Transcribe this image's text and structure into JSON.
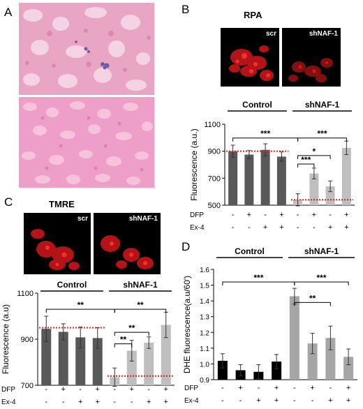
{
  "panel_letters": {
    "a": "A",
    "b": "B",
    "c": "C",
    "d": "D"
  },
  "panel_b": {
    "title": "RPA",
    "image_labels": [
      "scr",
      "shNAF-1"
    ]
  },
  "panel_c": {
    "title": "TMRE",
    "image_labels": [
      "scr",
      "shNAF-1"
    ]
  },
  "treatment_marks": {
    "minus": "-",
    "plus": "+"
  },
  "chart_data": [
    {
      "id": "B",
      "type": "bar",
      "ylabel": "Fluorescence (a.u.)",
      "ylim": [
        500,
        1100
      ],
      "yticks": [
        500,
        700,
        900,
        1100
      ],
      "groups": [
        "Control",
        "shNAF-1"
      ],
      "row_labels": [
        "DFP",
        "Ex-4"
      ],
      "dfp": [
        "-",
        "+",
        "-",
        "+",
        "-",
        "+",
        "-",
        "+"
      ],
      "ex4": [
        "-",
        "-",
        "+",
        "+",
        "-",
        "-",
        "+",
        "+"
      ],
      "values": [
        900,
        875,
        910,
        860,
        540,
        735,
        640,
        925
      ],
      "errors": [
        45,
        30,
        45,
        35,
        45,
        40,
        40,
        50
      ],
      "colors": [
        "#595959",
        "#595959",
        "#595959",
        "#595959",
        "#bfbfbf",
        "#bfbfbf",
        "#bfbfbf",
        "#bfbfbf"
      ],
      "ref_lines": [
        {
          "value": 900,
          "from": 0,
          "to": 3
        },
        {
          "value": 540,
          "from": 4,
          "to": 7
        }
      ],
      "sig": [
        {
          "from": 0,
          "to": 4,
          "label": "***",
          "y": 998
        },
        {
          "from": 4,
          "to": 7,
          "label": "***",
          "y": 998
        },
        {
          "from": 4,
          "to": 6,
          "label": "*",
          "y": 868
        },
        {
          "from": 4,
          "to": 5,
          "label": "***",
          "y": 805
        }
      ]
    },
    {
      "id": "C",
      "type": "bar",
      "ylabel": "Fluorescence (a.u)",
      "ylim": [
        700,
        1100
      ],
      "yticks": [
        700,
        900,
        1100
      ],
      "groups": [
        "Control",
        "shNAF-1"
      ],
      "row_labels": [
        "DFP",
        "Ex-4"
      ],
      "dfp": [
        "-",
        "+",
        "-",
        "+",
        "-",
        "+",
        "-",
        "+"
      ],
      "ex4": [
        "-",
        "-",
        "+",
        "+",
        "-",
        "-",
        "+",
        "+"
      ],
      "values": [
        945,
        932,
        908,
        905,
        735,
        850,
        885,
        962
      ],
      "errors": [
        55,
        35,
        45,
        45,
        40,
        45,
        25,
        55
      ],
      "colors": [
        "#595959",
        "#595959",
        "#595959",
        "#595959",
        "#bfbfbf",
        "#bfbfbf",
        "#bfbfbf",
        "#bfbfbf"
      ],
      "ref_lines": [
        {
          "value": 950,
          "from": 0,
          "to": 3
        },
        {
          "value": 740,
          "from": 4,
          "to": 7
        }
      ],
      "sig": [
        {
          "from": 0,
          "to": 4,
          "label": "**",
          "y": 1030
        },
        {
          "from": 4,
          "to": 7,
          "label": "**",
          "y": 1030
        },
        {
          "from": 4,
          "to": 6,
          "label": "**",
          "y": 930
        },
        {
          "from": 4,
          "to": 5,
          "label": "**",
          "y": 880
        }
      ]
    },
    {
      "id": "D",
      "type": "bar",
      "ylabel": "DHE fluorescence(a.u/60')",
      "ylim": [
        0.9,
        1.6
      ],
      "yticks": [
        0.9,
        1.0,
        1.1,
        1.2,
        1.3,
        1.4,
        1.5,
        1.6
      ],
      "groups": [
        "Control",
        "shNAF-1"
      ],
      "row_labels": [
        "DFP",
        "Ex-4"
      ],
      "dfp": [
        "-",
        "+",
        "-",
        "+",
        "-",
        "+",
        "-",
        "+"
      ],
      "ex4": [
        "-",
        "-",
        "+",
        "+",
        "-",
        "-",
        "+",
        "+"
      ],
      "values": [
        1.02,
        0.96,
        0.95,
        1.015,
        1.43,
        1.13,
        1.165,
        1.045
      ],
      "errors": [
        0.045,
        0.035,
        0.045,
        0.045,
        0.05,
        0.065,
        0.075,
        0.05
      ],
      "colors": [
        "#000000",
        "#000000",
        "#000000",
        "#000000",
        "#a6a6a6",
        "#a6a6a6",
        "#a6a6a6",
        "#a6a6a6"
      ],
      "ref_lines": [],
      "sig": [
        {
          "from": 0,
          "to": 4,
          "label": "***",
          "y": 1.52
        },
        {
          "from": 4,
          "to": 7,
          "label": "***",
          "y": 1.52
        },
        {
          "from": 4,
          "to": 6,
          "label": "**",
          "y": 1.39
        }
      ]
    }
  ]
}
